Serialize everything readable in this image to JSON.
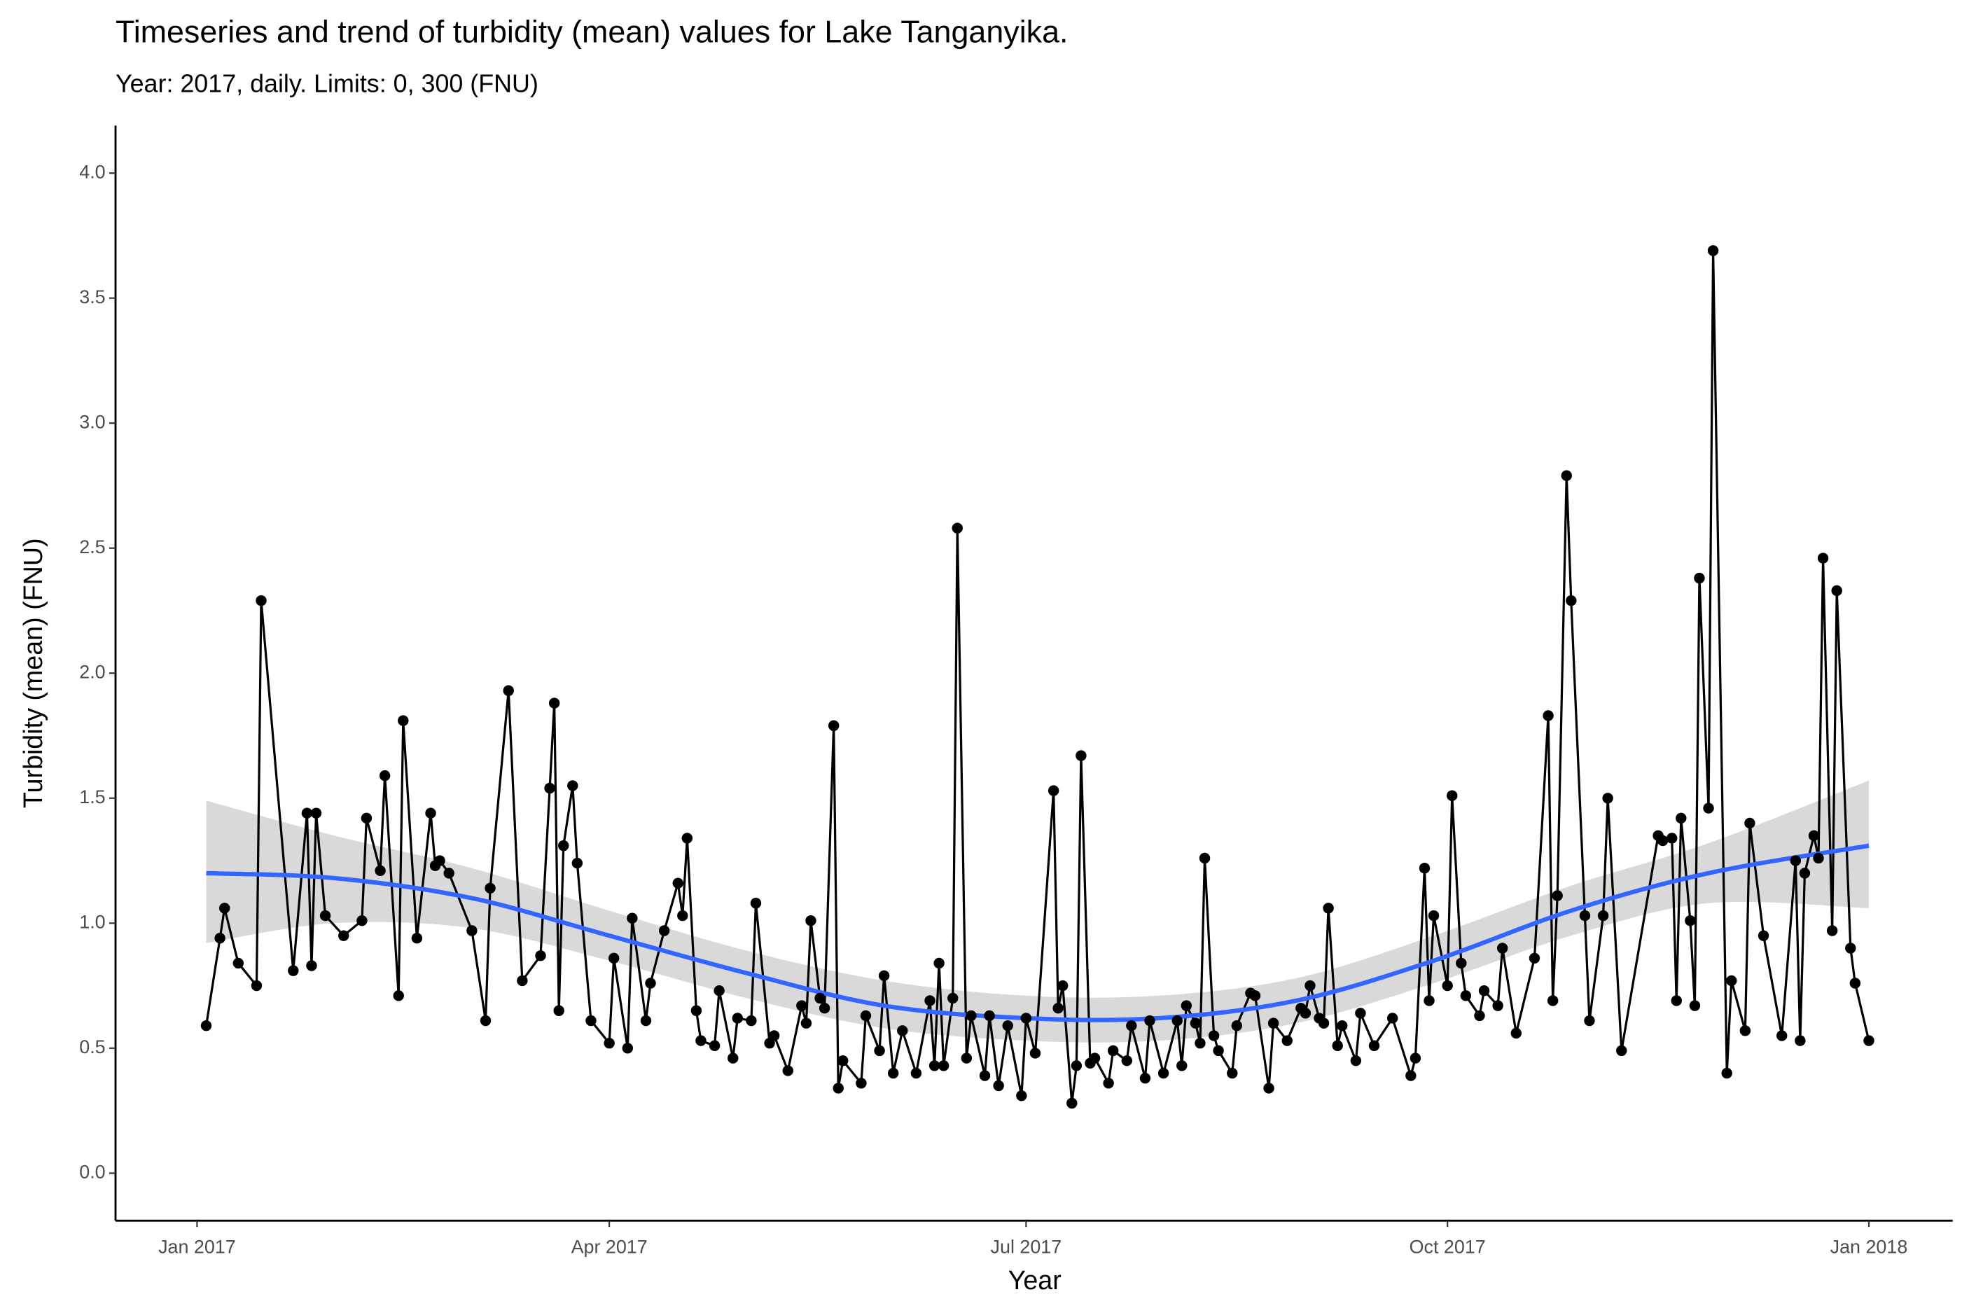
{
  "chart_data": {
    "type": "line",
    "title": "Timeseries and trend of turbidity (mean) values for Lake Tanganyika.",
    "subtitle": "Year: 2017, daily. Limits: 0, 300 (FNU)",
    "x_label": "Year",
    "y_label": "Turbidity (mean) (FNU)",
    "x": [
      2,
      5,
      6,
      9,
      13,
      14,
      21,
      24,
      25,
      26,
      28,
      32,
      36,
      37,
      40,
      41,
      44,
      45,
      48,
      51,
      52,
      53,
      55,
      60,
      63,
      64,
      68,
      71,
      75,
      77,
      78,
      79,
      80,
      82,
      83,
      86,
      90,
      91,
      94,
      95,
      98,
      99,
      102,
      105,
      106,
      107,
      109,
      110,
      113,
      114,
      117,
      118,
      121,
      122,
      125,
      126,
      129,
      132,
      133,
      134,
      136,
      137,
      139,
      140,
      141,
      145,
      146,
      149,
      150,
      152,
      154,
      157,
      160,
      161,
      162,
      163,
      165,
      166,
      168,
      169,
      172,
      173,
      175,
      177,
      180,
      181,
      183,
      187,
      188,
      189,
      191,
      192,
      193,
      195,
      196,
      199,
      200,
      203,
      204,
      207,
      208,
      211,
      214,
      215,
      216,
      218,
      219,
      220,
      222,
      223,
      226,
      227,
      230,
      231,
      234,
      235,
      238,
      241,
      242,
      243,
      245,
      246,
      247,
      249,
      250,
      253,
      254,
      257,
      261,
      265,
      266,
      268,
      269,
      270,
      273,
      274,
      276,
      277,
      280,
      281,
      284,
      285,
      288,
      292,
      295,
      296,
      297,
      299,
      300,
      303,
      304,
      307,
      308,
      311,
      319,
      320,
      322,
      323,
      324,
      326,
      327,
      328,
      330,
      331,
      334,
      335,
      338,
      339,
      342,
      346,
      349,
      350,
      351,
      353,
      354,
      355,
      357,
      358,
      361,
      362,
      365
    ],
    "values": [
      0.59,
      0.94,
      1.06,
      0.84,
      0.75,
      2.29,
      0.81,
      1.44,
      0.83,
      1.44,
      1.03,
      0.95,
      1.01,
      1.42,
      1.21,
      1.59,
      0.71,
      1.81,
      0.94,
      1.44,
      1.23,
      1.25,
      1.2,
      0.97,
      0.61,
      1.14,
      1.93,
      0.77,
      0.87,
      1.54,
      1.88,
      0.65,
      1.31,
      1.55,
      1.24,
      0.61,
      0.52,
      0.86,
      0.5,
      1.02,
      0.61,
      0.76,
      0.97,
      1.16,
      1.03,
      1.34,
      0.65,
      0.53,
      0.51,
      0.73,
      0.46,
      0.62,
      0.61,
      1.08,
      0.52,
      0.55,
      0.41,
      0.67,
      0.6,
      1.01,
      0.7,
      0.66,
      1.79,
      0.34,
      0.45,
      0.36,
      0.63,
      0.49,
      0.79,
      0.4,
      0.57,
      0.4,
      0.69,
      0.43,
      0.84,
      0.43,
      0.7,
      2.58,
      0.46,
      0.63,
      0.39,
      0.63,
      0.35,
      0.59,
      0.31,
      0.62,
      0.48,
      1.53,
      0.66,
      0.75,
      0.28,
      0.43,
      1.67,
      0.44,
      0.46,
      0.36,
      0.49,
      0.45,
      0.59,
      0.38,
      0.61,
      0.4,
      0.61,
      0.43,
      0.67,
      0.6,
      0.52,
      1.26,
      0.55,
      0.49,
      0.4,
      0.59,
      0.72,
      0.71,
      0.34,
      0.6,
      0.53,
      0.66,
      0.64,
      0.75,
      0.62,
      0.6,
      1.06,
      0.51,
      0.59,
      0.45,
      0.64,
      0.51,
      0.62,
      0.39,
      0.46,
      1.22,
      0.69,
      1.03,
      0.75,
      1.51,
      0.84,
      0.71,
      0.63,
      0.73,
      0.67,
      0.9,
      0.56,
      0.86,
      1.83,
      0.69,
      1.11,
      2.79,
      2.29,
      1.03,
      0.61,
      1.03,
      1.5,
      0.49,
      1.35,
      1.33,
      1.34,
      0.69,
      1.42,
      1.01,
      0.67,
      2.38,
      1.46,
      3.69,
      0.4,
      0.77,
      0.57,
      1.4,
      0.95,
      0.55,
      1.25,
      0.53,
      1.2,
      1.35,
      1.26,
      2.46,
      0.97,
      2.33,
      0.9,
      0.76,
      0.53
    ],
    "color": "#000000",
    "trend_x": [
      2,
      30,
      60,
      90,
      120,
      150,
      181,
      210,
      240,
      270,
      300,
      330,
      365
    ],
    "trend": [
      1.2,
      1.18,
      1.1,
      0.95,
      0.8,
      0.67,
      0.62,
      0.62,
      0.69,
      0.85,
      1.05,
      1.2,
      1.31
    ],
    "trend_lower": [
      0.92,
      1.0,
      0.98,
      0.85,
      0.7,
      0.58,
      0.53,
      0.53,
      0.6,
      0.76,
      0.95,
      1.08,
      1.06
    ],
    "trend_upper": [
      1.49,
      1.35,
      1.22,
      1.05,
      0.89,
      0.77,
      0.71,
      0.71,
      0.78,
      0.95,
      1.15,
      1.32,
      1.57
    ],
    "trend_color": "#3366ff",
    "band_color": "#d9d9d9",
    "xlim": [
      -17.8,
      383.3
    ],
    "ylim": [
      -0.19,
      4.19
    ],
    "xticks": [
      {
        "value": 0,
        "label": "Jan 2017"
      },
      {
        "value": 90,
        "label": "Apr 2017"
      },
      {
        "value": 181,
        "label": "Jul 2017"
      },
      {
        "value": 273,
        "label": "Oct 2017"
      },
      {
        "value": 365,
        "label": "Jan 2018"
      }
    ],
    "yticks": [
      {
        "value": 0,
        "label": "0.0"
      },
      0.5,
      {
        "value": 1,
        "label": "1.0"
      },
      1.5,
      {
        "value": 2,
        "label": "2.0"
      },
      2.5,
      {
        "value": 3,
        "label": "3.0"
      },
      3.5,
      {
        "value": 4,
        "label": "4.0"
      }
    ],
    "grid": false
  }
}
